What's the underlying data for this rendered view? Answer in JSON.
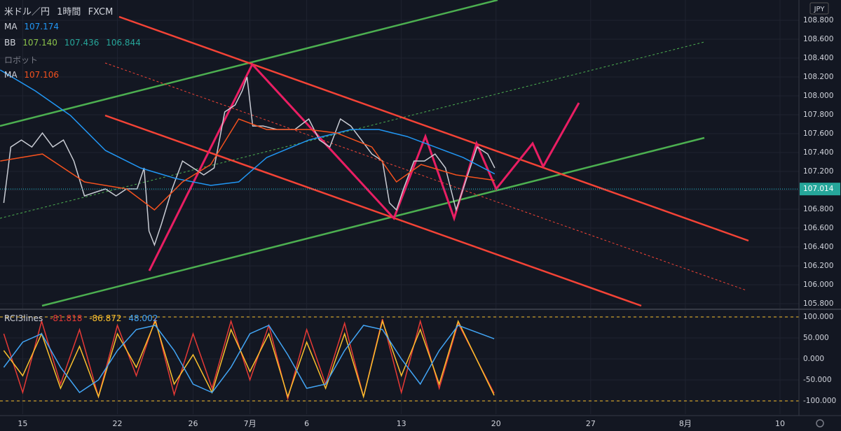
{
  "header": {
    "symbol": "米ドル／円",
    "interval": "1時間",
    "source": "FXCM",
    "currency": "JPY",
    "bb_label": "BB",
    "bb_values": [
      "107.140",
      "107.436",
      "106.844"
    ],
    "robot_label": "ロボット"
  },
  "chart_data": [
    {
      "type": "line",
      "xlim": [
        -1.2,
        41
      ],
      "xticks": [
        {
          "value": 0,
          "label": "15"
        },
        {
          "value": 5,
          "label": "22"
        },
        {
          "value": 9,
          "label": "26"
        },
        {
          "value": 12,
          "label": "7月"
        },
        {
          "value": 15,
          "label": "6"
        },
        {
          "value": 20,
          "label": "13"
        },
        {
          "value": 25,
          "label": "20"
        },
        {
          "value": 30,
          "label": "27"
        },
        {
          "value": 35,
          "label": "8月"
        },
        {
          "value": 40,
          "label": "10"
        }
      ],
      "ylim": [
        105.756,
        109.015
      ],
      "yticks": [
        {
          "value": 105.8,
          "label": "105.800"
        },
        {
          "value": 106,
          "label": "106.000"
        },
        {
          "value": 106.2,
          "label": "106.200"
        },
        {
          "value": 106.4,
          "label": "106.400"
        },
        {
          "value": 106.6,
          "label": "106.600"
        },
        {
          "value": 106.8,
          "label": "106.800"
        },
        {
          "value": 107,
          "label": "107.000"
        },
        {
          "value": 107.2,
          "label": "107.200"
        },
        {
          "value": 107.4,
          "label": "107.400"
        },
        {
          "value": 107.6,
          "label": "107.600"
        },
        {
          "value": 107.8,
          "label": "107.800"
        },
        {
          "value": 108,
          "label": "108.000"
        },
        {
          "value": 108.2,
          "label": "108.200"
        },
        {
          "value": 108.4,
          "label": "108.400"
        },
        {
          "value": 108.6,
          "label": "108.600"
        },
        {
          "value": 108.8,
          "label": "108.800"
        }
      ],
      "grid": true,
      "last_price": {
        "value": 107.014,
        "label": "107.014"
      },
      "series": [
        {
          "color": "#c9ccd4",
          "x": [
            -1.0,
            -0.63,
            -0.07,
            0.48,
            1.04,
            1.59,
            2.15,
            2.7,
            3.26,
            3.81,
            4.37,
            4.93,
            5.48,
            6.04,
            6.41,
            6.67,
            6.96,
            7.33,
            7.89,
            8.44,
            9.0,
            9.56,
            10.11,
            10.67,
            11.22,
            11.59,
            11.85,
            12.15,
            12.7,
            13.44,
            14.37,
            15.11,
            15.67,
            16.22,
            16.78,
            17.33,
            17.89,
            18.44,
            19.0,
            19.37,
            19.74,
            20.11,
            20.67,
            21.22,
            21.78,
            22.33,
            22.89,
            23.26,
            23.63,
            24.0,
            24.56,
            24.93
          ],
          "values": [
            106.867,
            107.459,
            107.533,
            107.459,
            107.607,
            107.459,
            107.533,
            107.311,
            106.941,
            106.978,
            107.015,
            106.941,
            107.015,
            107.015,
            107.237,
            106.57,
            106.422,
            106.644,
            107.015,
            107.311,
            107.237,
            107.163,
            107.237,
            107.83,
            107.904,
            108.052,
            108.2,
            107.681,
            107.681,
            107.644,
            107.644,
            107.756,
            107.533,
            107.459,
            107.756,
            107.681,
            107.533,
            107.385,
            107.311,
            106.867,
            106.793,
            107.015,
            107.311,
            107.311,
            107.385,
            107.237,
            106.793,
            107.015,
            107.237,
            107.459,
            107.385,
            107.237
          ]
        },
        {
          "name": "MA",
          "color": "#2196f3",
          "x": [
            -1.19,
            0.67,
            2.52,
            4.37,
            6.22,
            8.07,
            9.93,
            11.41,
            12.89,
            15.11,
            17.33,
            18.81,
            20.3,
            21.78,
            23.26,
            24.93
          ],
          "values": [
            108.274,
            108.052,
            107.793,
            107.422,
            107.237,
            107.126,
            107.052,
            107.089,
            107.348,
            107.533,
            107.644,
            107.644,
            107.57,
            107.459,
            107.348,
            107.174
          ]
        },
        {
          "name": "MA",
          "color": "#f4511e",
          "x": [
            -1.19,
            1.04,
            3.26,
            5.48,
            6.96,
            8.44,
            9.93,
            11.41,
            12.89,
            15.11,
            16.59,
            18.44,
            19.74,
            21.04,
            22.89,
            24.93
          ],
          "values": [
            107.311,
            107.385,
            107.089,
            107.015,
            106.793,
            107.089,
            107.274,
            107.756,
            107.644,
            107.644,
            107.607,
            107.459,
            107.089,
            107.274,
            107.163,
            107.106
          ]
        }
      ]
    },
    {
      "type": "line",
      "title": "RCI3lines",
      "xlim": [
        -1.2,
        41
      ],
      "ylim": [
        -131.7,
        111.7
      ],
      "yticks": [
        {
          "value": 100,
          "label": "100.000"
        },
        {
          "value": 50,
          "label": "50.000"
        },
        {
          "value": 0,
          "label": "0.000"
        },
        {
          "value": -50,
          "label": "-50.000"
        },
        {
          "value": -100,
          "label": "-100.000"
        }
      ],
      "grid": true,
      "levels": [
        100,
        -100
      ],
      "series": [
        {
          "color": "#e53935",
          "x": [
            -1,
            0,
            1,
            2,
            3,
            4,
            5,
            6,
            7,
            8,
            9,
            10,
            11,
            12,
            13,
            14,
            15,
            16,
            17,
            18,
            19,
            20,
            21,
            22,
            23,
            24.9
          ],
          "values": [
            60,
            -80,
            90,
            -60,
            70,
            -90,
            80,
            -40,
            95,
            -85,
            60,
            -70,
            90,
            -50,
            80,
            -95,
            70,
            -60,
            85,
            -90,
            95,
            -80,
            90,
            -70,
            85,
            -81.818
          ]
        },
        {
          "color": "#fbc02d",
          "x": [
            -1,
            0,
            1,
            2,
            3,
            4,
            5,
            6,
            7,
            8,
            9,
            10,
            11,
            12,
            13,
            14,
            15,
            16,
            17,
            18,
            19,
            20,
            21,
            22,
            23,
            24.9
          ],
          "values": [
            20,
            -40,
            60,
            -70,
            30,
            -90,
            60,
            -20,
            90,
            -60,
            10,
            -80,
            70,
            -30,
            60,
            -90,
            40,
            -70,
            60,
            -90,
            90,
            -40,
            70,
            -60,
            90,
            -86.872
          ]
        },
        {
          "color": "#42a5f5",
          "x": [
            -1,
            0,
            1,
            2,
            3,
            4,
            5,
            6,
            7,
            8,
            9,
            10,
            11,
            12,
            13,
            14,
            15,
            16,
            17,
            18,
            19,
            20,
            21,
            22,
            23,
            24.9
          ],
          "values": [
            -20,
            40,
            60,
            -20,
            -80,
            -50,
            20,
            70,
            80,
            20,
            -60,
            -80,
            -20,
            60,
            80,
            10,
            -70,
            -60,
            20,
            80,
            70,
            0,
            -60,
            20,
            80,
            48.002
          ]
        }
      ]
    }
  ]
}
